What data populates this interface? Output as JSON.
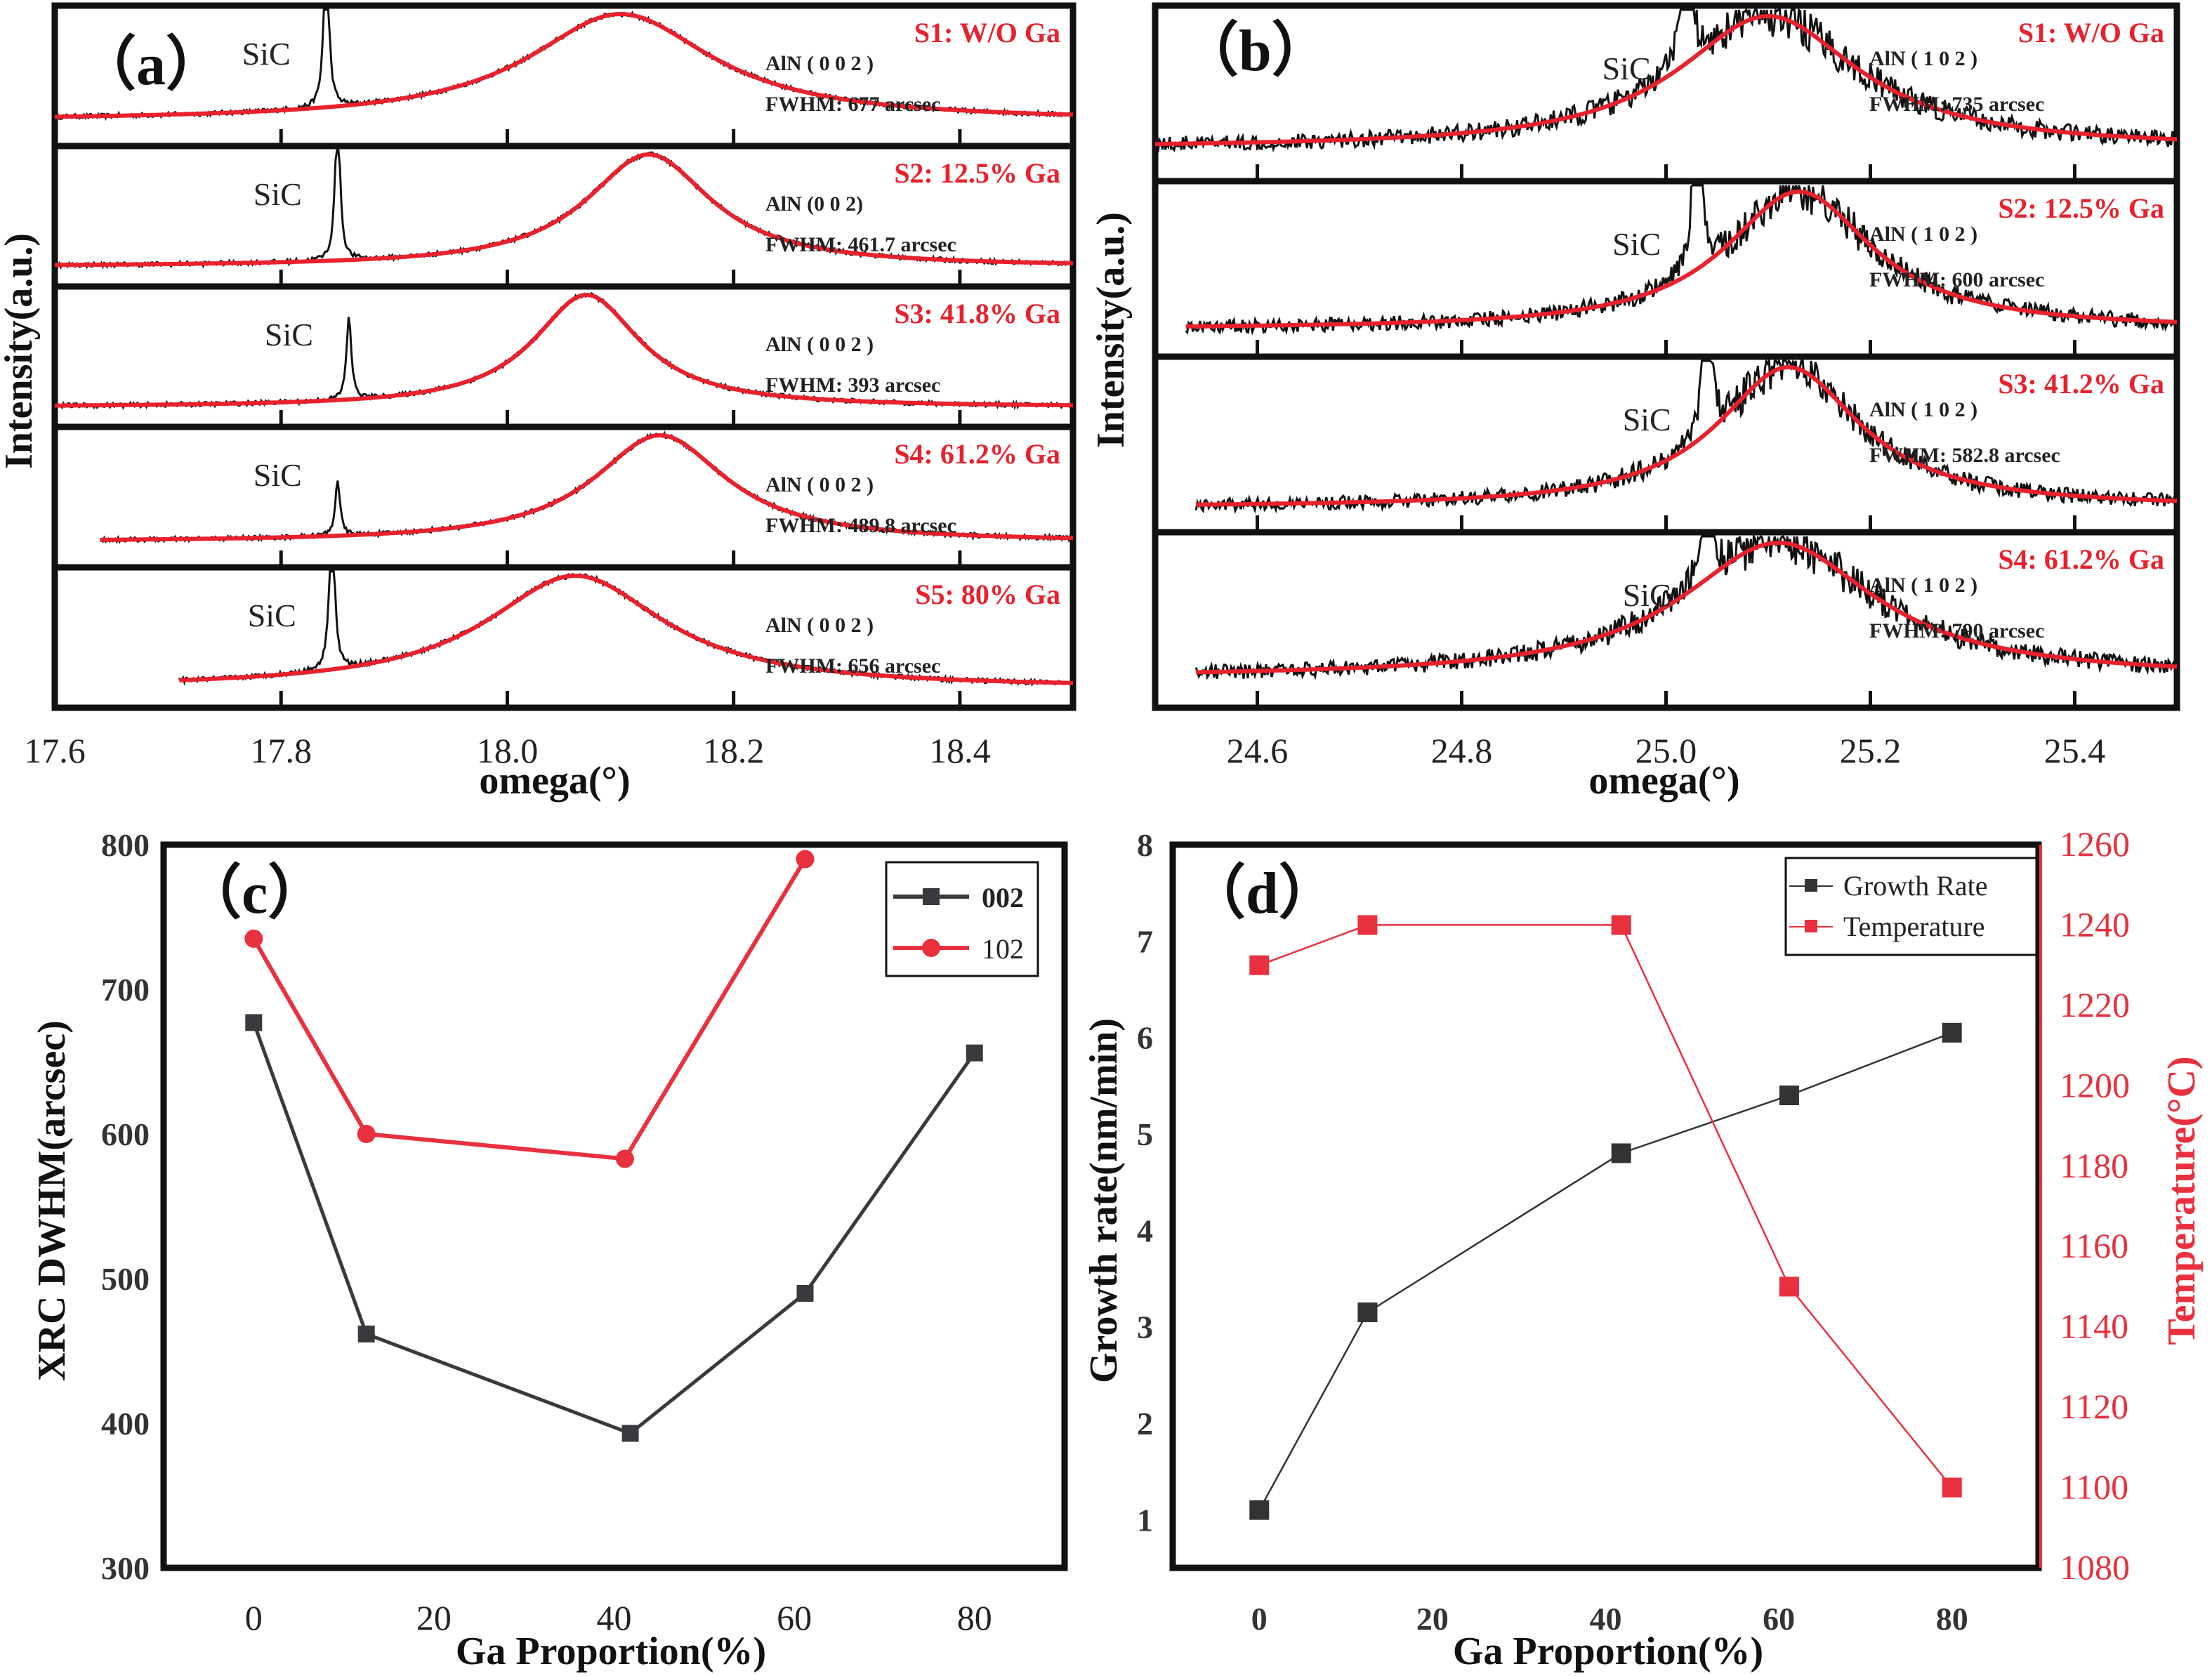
{
  "figure": {
    "panels": [
      "a",
      "b",
      "c",
      "d"
    ]
  },
  "colors": {
    "fit": "#e8212d",
    "data": "#111111",
    "series_002": "#3a3a3e",
    "series_102": "#e8303e",
    "growth": "#333333",
    "temperature": "#e8303e"
  },
  "chart_data": [
    {
      "id": "a",
      "type": "line",
      "title": "(a)",
      "panel_letter": "（a）",
      "xlabel": "omega(°)",
      "ylabel": "Intensity(a.u.)",
      "xlim": [
        17.6,
        18.5
      ],
      "xticks": [
        17.6,
        17.8,
        18.0,
        18.2,
        18.4
      ],
      "xtick_labels": [
        "17.6",
        "17.8",
        "18.0",
        "18.2",
        "18.4"
      ],
      "reflection_label": "AlN ( 0 0 2 )",
      "sic_label": "SiC",
      "subplots": [
        {
          "sample": "S1: W/O Ga",
          "reflection": "AlN ( 0 0 2 )",
          "fwhm_text": "FWHM: 677 arcsec",
          "fwhm_arcsec": 677,
          "aln_peak": 18.1,
          "sic_peak": 17.84,
          "sic_height": 1.6,
          "baseline": 0.05,
          "x_start": 17.6,
          "x_end": 18.5
        },
        {
          "sample": "S2: 12.5% Ga",
          "reflection": "AlN (0 0 2)",
          "fwhm_text": "FWHM: 461.7 arcsec",
          "fwhm_arcsec": 461.7,
          "aln_peak": 18.125,
          "sic_peak": 17.85,
          "sic_height": 1.4,
          "baseline": 0.0,
          "x_start": 17.6,
          "x_end": 18.5
        },
        {
          "sample": "S3: 41.8% Ga",
          "reflection": "AlN ( 0 0 2 )",
          "fwhm_text": "FWHM: 393 arcsec",
          "fwhm_arcsec": 393,
          "aln_peak": 18.07,
          "sic_peak": 17.86,
          "sic_height": 0.75,
          "baseline": 0.0,
          "x_start": 17.6,
          "x_end": 18.5
        },
        {
          "sample": "S4: 61.2% Ga",
          "reflection": "AlN ( 0 0 2 )",
          "fwhm_text": "FWHM: 489.8 arcsec",
          "fwhm_arcsec": 489.8,
          "aln_peak": 18.135,
          "sic_peak": 17.85,
          "sic_height": 0.5,
          "baseline": 0.05,
          "x_start": 17.64,
          "x_end": 18.5
        },
        {
          "sample": "S5: 80% Ga",
          "reflection": "AlN ( 0 0 2 )",
          "fwhm_text": "FWHM: 656 arcsec",
          "fwhm_arcsec": 656,
          "aln_peak": 18.06,
          "sic_peak": 17.845,
          "sic_height": 1.6,
          "baseline": 0.0,
          "x_start": 17.71,
          "x_end": 18.5
        }
      ]
    },
    {
      "id": "b",
      "type": "line",
      "title": "(b)",
      "panel_letter": "（b）",
      "xlabel": "omega(°)",
      "ylabel": "Intensity(a.u.)",
      "xlim": [
        24.5,
        25.5
      ],
      "xticks": [
        24.6,
        24.8,
        25.0,
        25.2,
        25.4
      ],
      "xtick_labels": [
        "24.6",
        "24.8",
        "25.0",
        "25.2",
        "25.4"
      ],
      "sic_label": "SiC",
      "subplots": [
        {
          "sample": "S1: W/O Ga",
          "reflection": "AlN ( 1 0 2 )",
          "fwhm_text": "FWHM:  735 arcsec",
          "fwhm_arcsec": 735,
          "aln_peak": 25.1,
          "sic_peak": 25.02,
          "sic_height": 1.6,
          "baseline": 0.06,
          "x_start": 24.5,
          "x_end": 25.5
        },
        {
          "sample": "S2: 12.5% Ga",
          "reflection": "AlN ( 1 0 2 )",
          "fwhm_text": "FWHM:  600 arcsec",
          "fwhm_arcsec": 600,
          "aln_peak": 25.13,
          "sic_peak": 25.03,
          "sic_height": 1.5,
          "baseline": 0.02,
          "x_start": 24.53,
          "x_end": 25.5
        },
        {
          "sample": "S3: 41.2% Ga",
          "reflection": "AlN ( 1 0 2 )",
          "fwhm_text": "FWHM:  582.8 arcsec",
          "fwhm_arcsec": 582.8,
          "aln_peak": 25.12,
          "sic_peak": 25.04,
          "sic_height": 1.3,
          "baseline": 0.0,
          "x_start": 24.54,
          "x_end": 25.5
        },
        {
          "sample": "S4: 61.2% Ga",
          "reflection": "AlN ( 1 0 2 )",
          "fwhm_text": "FWHM:  790 arcsec",
          "fwhm_arcsec": 790,
          "aln_peak": 25.11,
          "sic_peak": 25.04,
          "sic_height": 1.4,
          "baseline": 0.04,
          "x_start": 24.54,
          "x_end": 25.5
        }
      ]
    },
    {
      "id": "c",
      "type": "line",
      "panel_letter": "（c）",
      "xlabel": "Ga Proportion(%)",
      "ylabel": "XRC DWHM(arcsec)",
      "xlim": [
        -10,
        90
      ],
      "ylim": [
        300,
        800
      ],
      "xticks": [
        0,
        20,
        40,
        60,
        80
      ],
      "yticks": [
        300,
        400,
        500,
        600,
        700,
        800
      ],
      "legend": "top-right",
      "grid": false,
      "series": [
        {
          "name": "002",
          "marker": "square",
          "x": [
            0,
            12.5,
            41.8,
            61.2,
            80
          ],
          "values": [
            677,
            461.7,
            393,
            489.8,
            656
          ]
        },
        {
          "name": "102",
          "marker": "circle",
          "x": [
            0,
            12.5,
            41.2,
            61.2
          ],
          "values": [
            735,
            600,
            582.8,
            790
          ]
        }
      ]
    },
    {
      "id": "d",
      "type": "line",
      "panel_letter": "（d）",
      "xlabel": "Ga Proportion(%)",
      "ylabel": "Growth rate(nm/min)",
      "ylabel_right": "Temperature(°C)",
      "xlim": [
        -10,
        90
      ],
      "ylim": [
        0.5,
        8
      ],
      "ylim_right": [
        1080,
        1260
      ],
      "xticks": [
        0,
        20,
        40,
        60,
        80
      ],
      "yticks": [
        1,
        2,
        3,
        4,
        5,
        6,
        7,
        8
      ],
      "yticks_right": [
        1080,
        1100,
        1120,
        1140,
        1160,
        1180,
        1200,
        1220,
        1240,
        1260
      ],
      "legend": "top-right",
      "grid": false,
      "series": [
        {
          "name": "Growth Rate",
          "axis": "left",
          "marker": "square",
          "x": [
            0,
            12.5,
            41.8,
            61.2,
            80
          ],
          "values": [
            1.1,
            3.15,
            4.8,
            5.4,
            6.05
          ]
        },
        {
          "name": "Temperature",
          "axis": "right",
          "marker": "square",
          "x": [
            0,
            12.5,
            41.8,
            61.2,
            80
          ],
          "values": [
            1230,
            1240,
            1240,
            1150,
            1100
          ]
        }
      ]
    }
  ]
}
